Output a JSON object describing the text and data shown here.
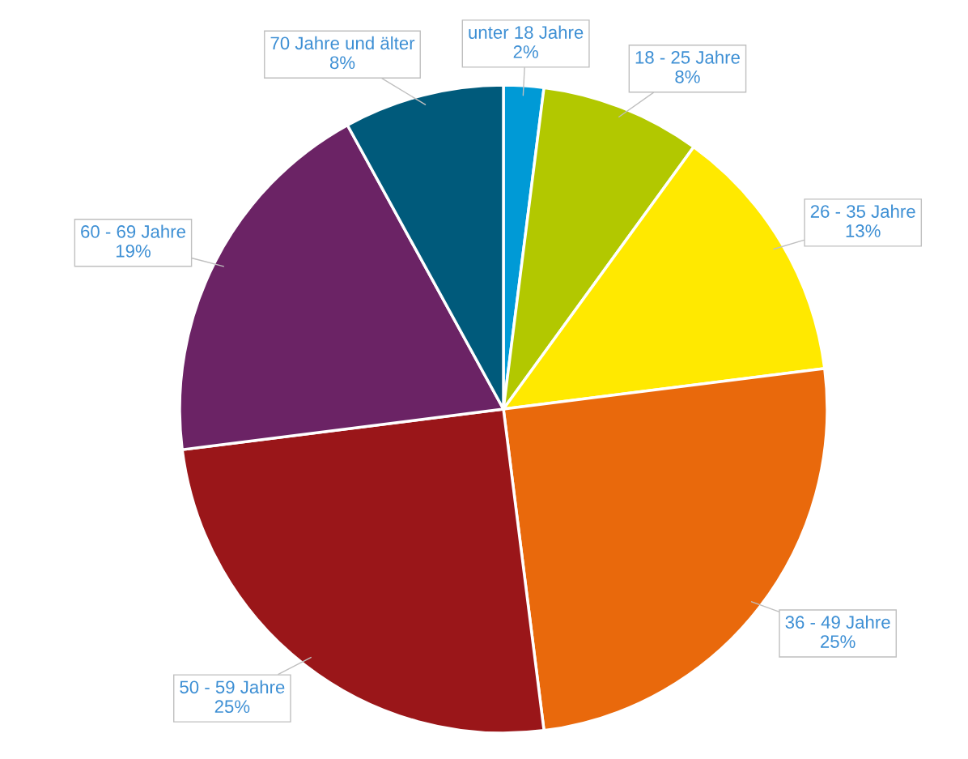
{
  "chart_data": {
    "type": "pie",
    "categories": [
      "unter 18 Jahre",
      "18 - 25 Jahre",
      "26 - 35 Jahre",
      "36 - 49 Jahre",
      "50 - 59 Jahre",
      "60 - 69 Jahre",
      "70 Jahre und älter"
    ],
    "values": [
      2,
      8,
      13,
      25,
      25,
      19,
      8
    ],
    "value_labels": [
      "2%",
      "8%",
      "13%",
      "25%",
      "25%",
      "19%",
      "8%"
    ],
    "colors": [
      "#009ad6",
      "#b2c800",
      "#ffe900",
      "#e9690c",
      "#9a1619",
      "#6b2365",
      "#005a7b"
    ]
  }
}
